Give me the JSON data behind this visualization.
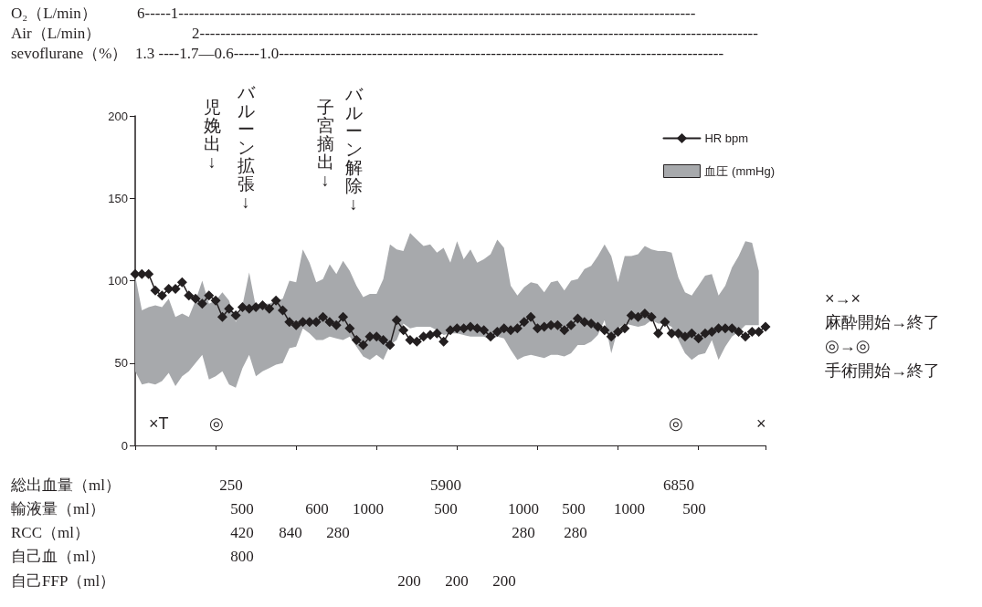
{
  "chart_data": {
    "type": "line",
    "categories": [
      null,
      null,
      null,
      null,
      null,
      null,
      null,
      null,
      null,
      null,
      null,
      null,
      null,
      null,
      null,
      null,
      null,
      null,
      null,
      null,
      null,
      null,
      null,
      null,
      null,
      null,
      null,
      null,
      null,
      null,
      null,
      null,
      null,
      null,
      null,
      null,
      null,
      null,
      null,
      null,
      null,
      null,
      null,
      null,
      null,
      null,
      null,
      null,
      null,
      null,
      null,
      null,
      null,
      null,
      null,
      null,
      null,
      null,
      null,
      null,
      null,
      null,
      null,
      null,
      null,
      null,
      null,
      null,
      null,
      null,
      null,
      null,
      null,
      null,
      null,
      null,
      null,
      null,
      null,
      null,
      null,
      null,
      null,
      null,
      null,
      null,
      null,
      null,
      null,
      null,
      null,
      null,
      null,
      null,
      null
    ],
    "series": [
      {
        "name": "血圧 (mmHg)",
        "type": "area",
        "color": "#a7a9ac",
        "values": [
          null,
          null,
          null,
          null,
          null,
          null,
          null,
          null,
          null,
          null,
          null,
          null,
          null,
          null,
          null,
          null,
          null,
          null,
          null,
          null,
          null,
          null,
          null,
          null,
          null,
          null,
          null,
          null,
          null,
          null,
          null,
          null,
          null,
          null,
          null,
          null,
          null,
          null,
          null,
          null,
          null,
          null,
          null,
          null,
          null,
          null,
          null,
          null,
          null,
          null,
          null,
          null,
          null,
          null,
          null,
          null,
          null,
          null,
          null,
          null,
          null,
          null,
          null,
          null,
          null,
          null,
          null,
          null,
          null,
          null,
          null,
          null,
          null,
          null,
          null,
          null,
          null,
          null,
          null,
          null,
          null,
          null,
          null,
          null,
          null,
          null,
          null,
          null,
          null,
          null,
          null,
          null,
          null,
          null,
          null
        ],
        "upper": [
          103,
          82,
          84,
          85,
          84,
          89,
          78,
          80,
          78,
          88,
          100,
          86,
          88,
          93,
          88,
          75,
          85,
          105,
          84,
          86,
          86,
          88,
          89,
          100,
          99,
          119,
          111,
          99,
          101,
          110,
          104,
          112,
          106,
          97,
          90,
          92,
          92,
          101,
          122,
          119,
          118,
          129,
          125,
          121,
          122,
          117,
          120,
          111,
          124,
          113,
          119,
          111,
          113,
          116,
          125,
          120,
          97,
          91,
          96,
          99,
          98,
          93,
          99,
          100,
          94,
          100,
          101,
          107,
          109,
          115,
          122,
          115,
          99,
          115,
          115,
          116,
          121,
          119,
          118,
          118,
          117,
          102,
          93,
          91,
          97,
          103,
          104,
          91,
          97,
          108,
          115,
          124,
          123,
          106,
          null
        ],
        "lower": [
          45,
          37,
          38,
          37,
          39,
          44,
          36,
          42,
          45,
          50,
          55,
          40,
          42,
          45,
          37,
          35,
          47,
          55,
          42,
          45,
          47,
          49,
          50,
          59,
          60,
          71,
          68,
          64,
          64,
          66,
          65,
          64,
          66,
          60,
          54,
          52,
          55,
          52,
          61,
          64,
          74,
          71,
          72,
          72,
          72,
          70,
          67,
          68,
          68,
          67,
          66,
          66,
          66,
          64,
          66,
          65,
          58,
          52,
          54,
          55,
          54,
          53,
          55,
          55,
          54,
          56,
          61,
          61,
          63,
          67,
          76,
          56,
          71,
          74,
          73,
          72,
          73,
          76,
          74,
          74,
          72,
          64,
          56,
          52,
          55,
          56,
          64,
          52,
          60,
          66,
          69,
          73,
          73,
          73,
          null
        ]
      },
      {
        "name": "HR bpm",
        "type": "line",
        "color": "#231f20",
        "marker": "diamond",
        "values": [
          104,
          104,
          104,
          94,
          91,
          95,
          95,
          99,
          91,
          89,
          86,
          91,
          88,
          78,
          83,
          79,
          84,
          83,
          84,
          85,
          83,
          88,
          82,
          75,
          73,
          75,
          75,
          75,
          78,
          75,
          73,
          78,
          71,
          64,
          61,
          66,
          66,
          64,
          61,
          76,
          70,
          64,
          63,
          66,
          67,
          68,
          63,
          70,
          71,
          71,
          72,
          71,
          70,
          66,
          69,
          71,
          70,
          71,
          75,
          78,
          71,
          72,
          73,
          73,
          70,
          73,
          77,
          75,
          74,
          72,
          70,
          66,
          69,
          71,
          79,
          78,
          80,
          78,
          68,
          75,
          68,
          68,
          66,
          68,
          65,
          68,
          69,
          71,
          71,
          71,
          69,
          66,
          69,
          69,
          72
        ]
      }
    ],
    "ylim": [
      0,
      200
    ],
    "yticks": [
      0,
      50,
      100,
      150,
      200
    ],
    "grid": false,
    "legend": "top right",
    "tick_labels": "y",
    "annotations": [
      "O₂（L/min）",
      "6-----1----------------------------------------------------------------------------------------------------",
      "Air（L/min）",
      "2------------------------------------------------------------------------------------------------------------",
      "sevoflurane（%）",
      "1.3 ----1.7—0.6-----1.0--------------------------------------------------------------------------------------",
      "児娩出↓",
      "バルーン拡張↓",
      "子宮摘出↓",
      "バルーン解除↓",
      "×T",
      "◎",
      "◎",
      "×",
      "×→×",
      "麻酔開始→終了",
      "◎→◎",
      "手術開始→終了",
      "総出血量（ml）",
      "250",
      "5900",
      "6850",
      "輸液量（ml）",
      "500",
      "600",
      "1000",
      "500",
      "1000",
      "500",
      "1000",
      "500",
      "RCC（ml）",
      "420",
      "840",
      "280",
      "280",
      "280",
      "自己血（ml）",
      "800",
      "自己FFP（ml）",
      "200",
      "200",
      "200"
    ]
  }
}
